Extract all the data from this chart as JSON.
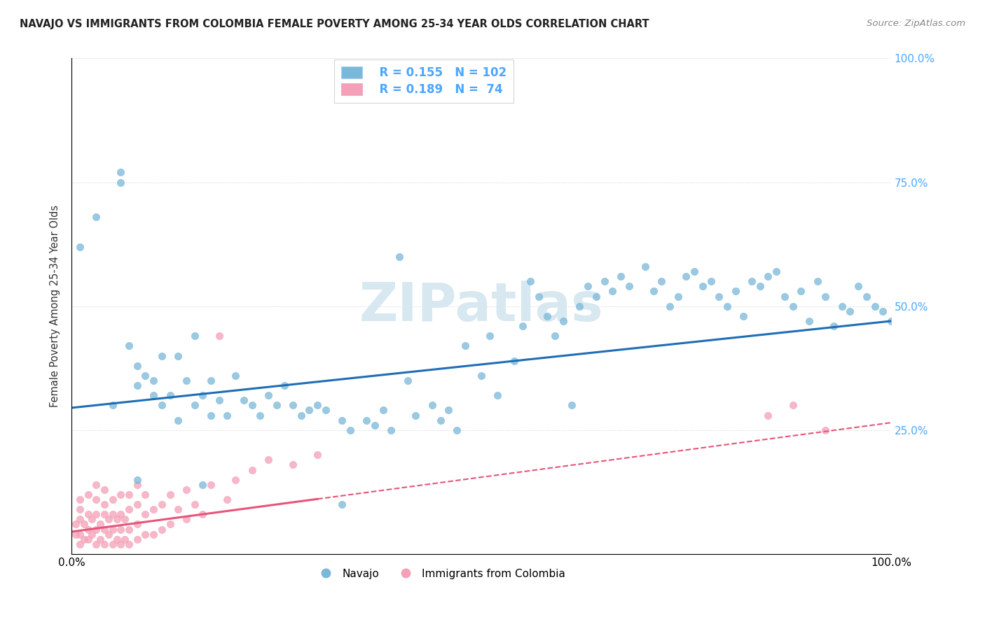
{
  "title": "NAVAJO VS IMMIGRANTS FROM COLOMBIA FEMALE POVERTY AMONG 25-34 YEAR OLDS CORRELATION CHART",
  "source": "Source: ZipAtlas.com",
  "ylabel": "Female Poverty Among 25-34 Year Olds",
  "xlim": [
    0,
    1.0
  ],
  "ylim": [
    0,
    1.0
  ],
  "navajo_color": "#7ab8d9",
  "colombia_color": "#f4a0b8",
  "navajo_line_color": "#1f6eb5",
  "colombia_line_color": "#e8547a",
  "watermark_text": "ZIPatlas",
  "legend_R_navajo": "R = 0.155",
  "legend_N_navajo": "N = 102",
  "legend_R_colombia": "R = 0.189",
  "legend_N_colombia": "N =  74",
  "navajo_slope": 0.175,
  "navajo_intercept": 0.295,
  "colombia_slope": 0.22,
  "colombia_intercept": 0.045,
  "navajo_points_x": [
    0.01,
    0.03,
    0.05,
    0.06,
    0.06,
    0.07,
    0.08,
    0.08,
    0.09,
    0.1,
    0.1,
    0.11,
    0.11,
    0.12,
    0.13,
    0.14,
    0.15,
    0.15,
    0.16,
    0.17,
    0.17,
    0.18,
    0.19,
    0.2,
    0.21,
    0.22,
    0.23,
    0.24,
    0.25,
    0.26,
    0.27,
    0.28,
    0.29,
    0.3,
    0.31,
    0.33,
    0.34,
    0.36,
    0.37,
    0.38,
    0.39,
    0.4,
    0.41,
    0.42,
    0.44,
    0.45,
    0.46,
    0.47,
    0.48,
    0.5,
    0.51,
    0.52,
    0.54,
    0.55,
    0.56,
    0.57,
    0.58,
    0.59,
    0.6,
    0.61,
    0.62,
    0.63,
    0.64,
    0.65,
    0.66,
    0.67,
    0.68,
    0.7,
    0.71,
    0.72,
    0.73,
    0.74,
    0.75,
    0.76,
    0.77,
    0.78,
    0.79,
    0.8,
    0.81,
    0.82,
    0.83,
    0.84,
    0.85,
    0.86,
    0.87,
    0.88,
    0.89,
    0.9,
    0.91,
    0.92,
    0.93,
    0.94,
    0.95,
    0.96,
    0.97,
    0.98,
    0.99,
    1.0,
    0.13,
    0.08,
    0.16,
    0.33
  ],
  "navajo_points_y": [
    0.62,
    0.68,
    0.3,
    0.75,
    0.77,
    0.42,
    0.38,
    0.34,
    0.36,
    0.35,
    0.32,
    0.4,
    0.3,
    0.32,
    0.27,
    0.35,
    0.3,
    0.44,
    0.32,
    0.35,
    0.28,
    0.31,
    0.28,
    0.36,
    0.31,
    0.3,
    0.28,
    0.32,
    0.3,
    0.34,
    0.3,
    0.28,
    0.29,
    0.3,
    0.29,
    0.27,
    0.25,
    0.27,
    0.26,
    0.29,
    0.25,
    0.6,
    0.35,
    0.28,
    0.3,
    0.27,
    0.29,
    0.25,
    0.42,
    0.36,
    0.44,
    0.32,
    0.39,
    0.46,
    0.55,
    0.52,
    0.48,
    0.44,
    0.47,
    0.3,
    0.5,
    0.54,
    0.52,
    0.55,
    0.53,
    0.56,
    0.54,
    0.58,
    0.53,
    0.55,
    0.5,
    0.52,
    0.56,
    0.57,
    0.54,
    0.55,
    0.52,
    0.5,
    0.53,
    0.48,
    0.55,
    0.54,
    0.56,
    0.57,
    0.52,
    0.5,
    0.53,
    0.47,
    0.55,
    0.52,
    0.46,
    0.5,
    0.49,
    0.54,
    0.52,
    0.5,
    0.49,
    0.47,
    0.4,
    0.15,
    0.14,
    0.1
  ],
  "colombia_points_x": [
    0.005,
    0.005,
    0.01,
    0.01,
    0.01,
    0.01,
    0.01,
    0.015,
    0.015,
    0.02,
    0.02,
    0.02,
    0.02,
    0.025,
    0.025,
    0.03,
    0.03,
    0.03,
    0.03,
    0.03,
    0.035,
    0.035,
    0.04,
    0.04,
    0.04,
    0.04,
    0.04,
    0.045,
    0.045,
    0.05,
    0.05,
    0.05,
    0.05,
    0.055,
    0.055,
    0.06,
    0.06,
    0.06,
    0.06,
    0.065,
    0.065,
    0.07,
    0.07,
    0.07,
    0.07,
    0.08,
    0.08,
    0.08,
    0.08,
    0.09,
    0.09,
    0.09,
    0.1,
    0.1,
    0.11,
    0.11,
    0.12,
    0.12,
    0.13,
    0.14,
    0.14,
    0.15,
    0.16,
    0.17,
    0.18,
    0.19,
    0.2,
    0.22,
    0.24,
    0.27,
    0.3,
    0.85,
    0.88,
    0.92
  ],
  "colombia_points_y": [
    0.04,
    0.06,
    0.02,
    0.04,
    0.07,
    0.09,
    0.11,
    0.03,
    0.06,
    0.03,
    0.05,
    0.08,
    0.12,
    0.04,
    0.07,
    0.02,
    0.05,
    0.08,
    0.11,
    0.14,
    0.03,
    0.06,
    0.02,
    0.05,
    0.08,
    0.1,
    0.13,
    0.04,
    0.07,
    0.02,
    0.05,
    0.08,
    0.11,
    0.03,
    0.07,
    0.02,
    0.05,
    0.08,
    0.12,
    0.03,
    0.07,
    0.02,
    0.05,
    0.09,
    0.12,
    0.03,
    0.06,
    0.1,
    0.14,
    0.04,
    0.08,
    0.12,
    0.04,
    0.09,
    0.05,
    0.1,
    0.06,
    0.12,
    0.09,
    0.07,
    0.13,
    0.1,
    0.08,
    0.14,
    0.44,
    0.11,
    0.15,
    0.17,
    0.19,
    0.18,
    0.2,
    0.28,
    0.3,
    0.25
  ]
}
